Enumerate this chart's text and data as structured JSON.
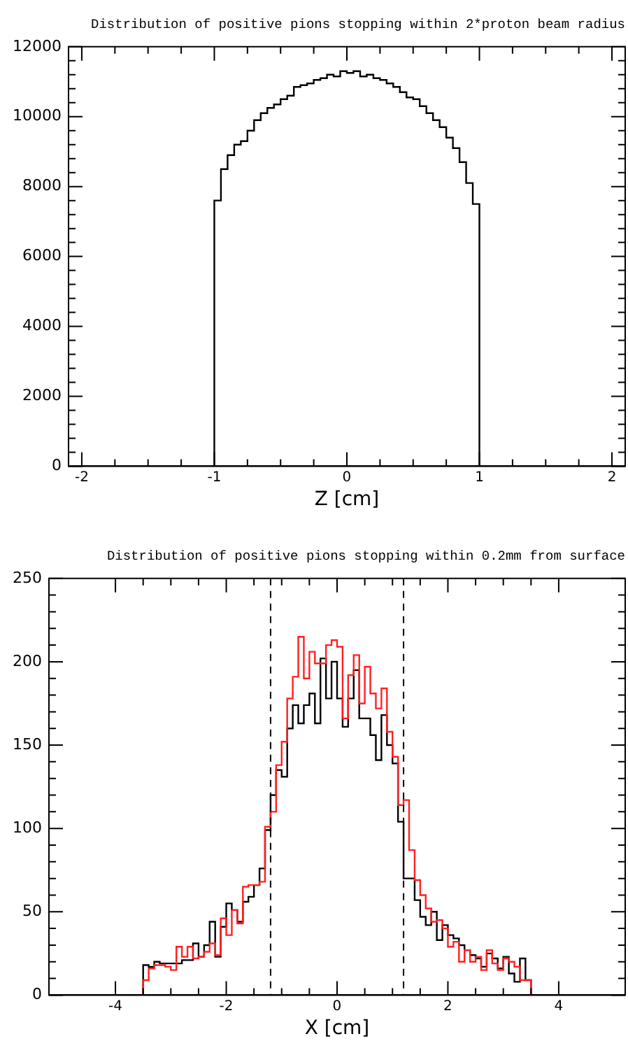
{
  "chart_data": [
    {
      "type": "histogram",
      "title": "Distribution of positive pions stopping within 2*proton beam radius",
      "xlabel": "Z [cm]",
      "xlim": [
        -2.1,
        2.1
      ],
      "xticks": [
        -2,
        -1,
        0,
        1,
        2
      ],
      "ylim": [
        0,
        12000
      ],
      "yticks": [
        0,
        2000,
        4000,
        6000,
        8000,
        10000,
        12000
      ],
      "grid": false,
      "legend": false,
      "color": "#000000",
      "bins": [
        -1,
        -0.95,
        -0.9,
        -0.85,
        -0.8,
        -0.75,
        -0.7,
        -0.65,
        -0.6,
        -0.55,
        -0.5,
        -0.45,
        -0.4,
        -0.35,
        -0.3,
        -0.25,
        -0.2,
        -0.15,
        -0.1,
        -0.05,
        0,
        0.05,
        0.1,
        0.15,
        0.2,
        0.25,
        0.3,
        0.35,
        0.4,
        0.45,
        0.5,
        0.55,
        0.6,
        0.65,
        0.7,
        0.75,
        0.8,
        0.85,
        0.9,
        0.95,
        1
      ],
      "values": [
        7600,
        8500,
        8900,
        9200,
        9300,
        9600,
        9900,
        10100,
        10250,
        10350,
        10500,
        10600,
        10850,
        10900,
        10950,
        11050,
        11100,
        11200,
        11150,
        11300,
        11250,
        11300,
        11150,
        11200,
        11100,
        11050,
        10950,
        10850,
        10700,
        10550,
        10500,
        10300,
        10100,
        9900,
        9700,
        9400,
        9100,
        8700,
        8100,
        7500
      ]
    },
    {
      "type": "histogram",
      "title": "Distribution of positive pions stopping within 0.2mm from surface",
      "xlabel": "X [cm]",
      "xlim": [
        -5.2,
        5.2
      ],
      "xticks": [
        -4,
        -2,
        0,
        2,
        4
      ],
      "ylim": [
        0,
        250
      ],
      "yticks": [
        0,
        50,
        100,
        150,
        200,
        250
      ],
      "grid": false,
      "legend": false,
      "bins": [
        -3.5,
        -3.4,
        -3.3,
        -3.2,
        -3.1,
        -3,
        -2.9,
        -2.8,
        -2.7,
        -2.6,
        -2.5,
        -2.4,
        -2.3,
        -2.2,
        -2.1,
        -2,
        -1.9,
        -1.8,
        -1.7,
        -1.6,
        -1.5,
        -1.4,
        -1.3,
        -1.2,
        -1.1,
        -1,
        -0.9,
        -0.8,
        -0.7,
        -0.6,
        -0.5,
        -0.4,
        -0.3,
        -0.2,
        -0.1,
        0,
        0.1,
        0.2,
        0.3,
        0.4,
        0.5,
        0.6,
        0.7,
        0.8,
        0.9,
        1,
        1.1,
        1.2,
        1.3,
        1.4,
        1.5,
        1.6,
        1.7,
        1.8,
        1.9,
        2,
        2.1,
        2.2,
        2.3,
        2.4,
        2.5,
        2.6,
        2.7,
        2.8,
        2.9,
        3,
        3.1,
        3.2,
        3.3,
        3.4,
        3.5
      ],
      "series": [
        {
          "color": "#000000",
          "values": [
            18,
            17,
            20,
            19,
            19,
            19,
            19,
            21,
            21,
            31,
            23,
            30,
            44,
            23,
            41,
            55,
            51,
            44,
            56,
            59,
            66,
            76,
            99,
            120,
            135,
            131,
            160,
            174,
            163,
            174,
            181,
            163,
            202,
            178,
            200,
            178,
            161,
            178,
            195,
            166,
            166,
            156,
            141,
            168,
            150,
            139,
            104,
            70,
            70,
            57,
            47,
            42,
            50,
            33,
            42,
            36,
            34,
            30,
            27,
            24,
            22,
            17,
            25,
            22,
            16,
            23,
            13,
            8,
            22,
            9
          ]
        },
        {
          "color": "#ff2020",
          "values": [
            9,
            16,
            18,
            18,
            17,
            15,
            29,
            23,
            29,
            22,
            23,
            26,
            31,
            24,
            46,
            36,
            51,
            43,
            65,
            66,
            66,
            68,
            101,
            110,
            138,
            152,
            178,
            191,
            215,
            190,
            206,
            199,
            199,
            210,
            213,
            209,
            166,
            192,
            204,
            175,
            197,
            181,
            172,
            184,
            158,
            143,
            114,
            117,
            87,
            69,
            60,
            52,
            44,
            45,
            40,
            29,
            32,
            20,
            27,
            20,
            23,
            15,
            27,
            19,
            15,
            22,
            20,
            17,
            9,
            9
          ]
        }
      ],
      "ref_lines": [
        {
          "axis": "x",
          "value": -1.2,
          "color": "#000000",
          "line_style": "dashed"
        },
        {
          "axis": "x",
          "value": 1.2,
          "color": "#000000",
          "line_style": "dashed"
        }
      ]
    }
  ]
}
